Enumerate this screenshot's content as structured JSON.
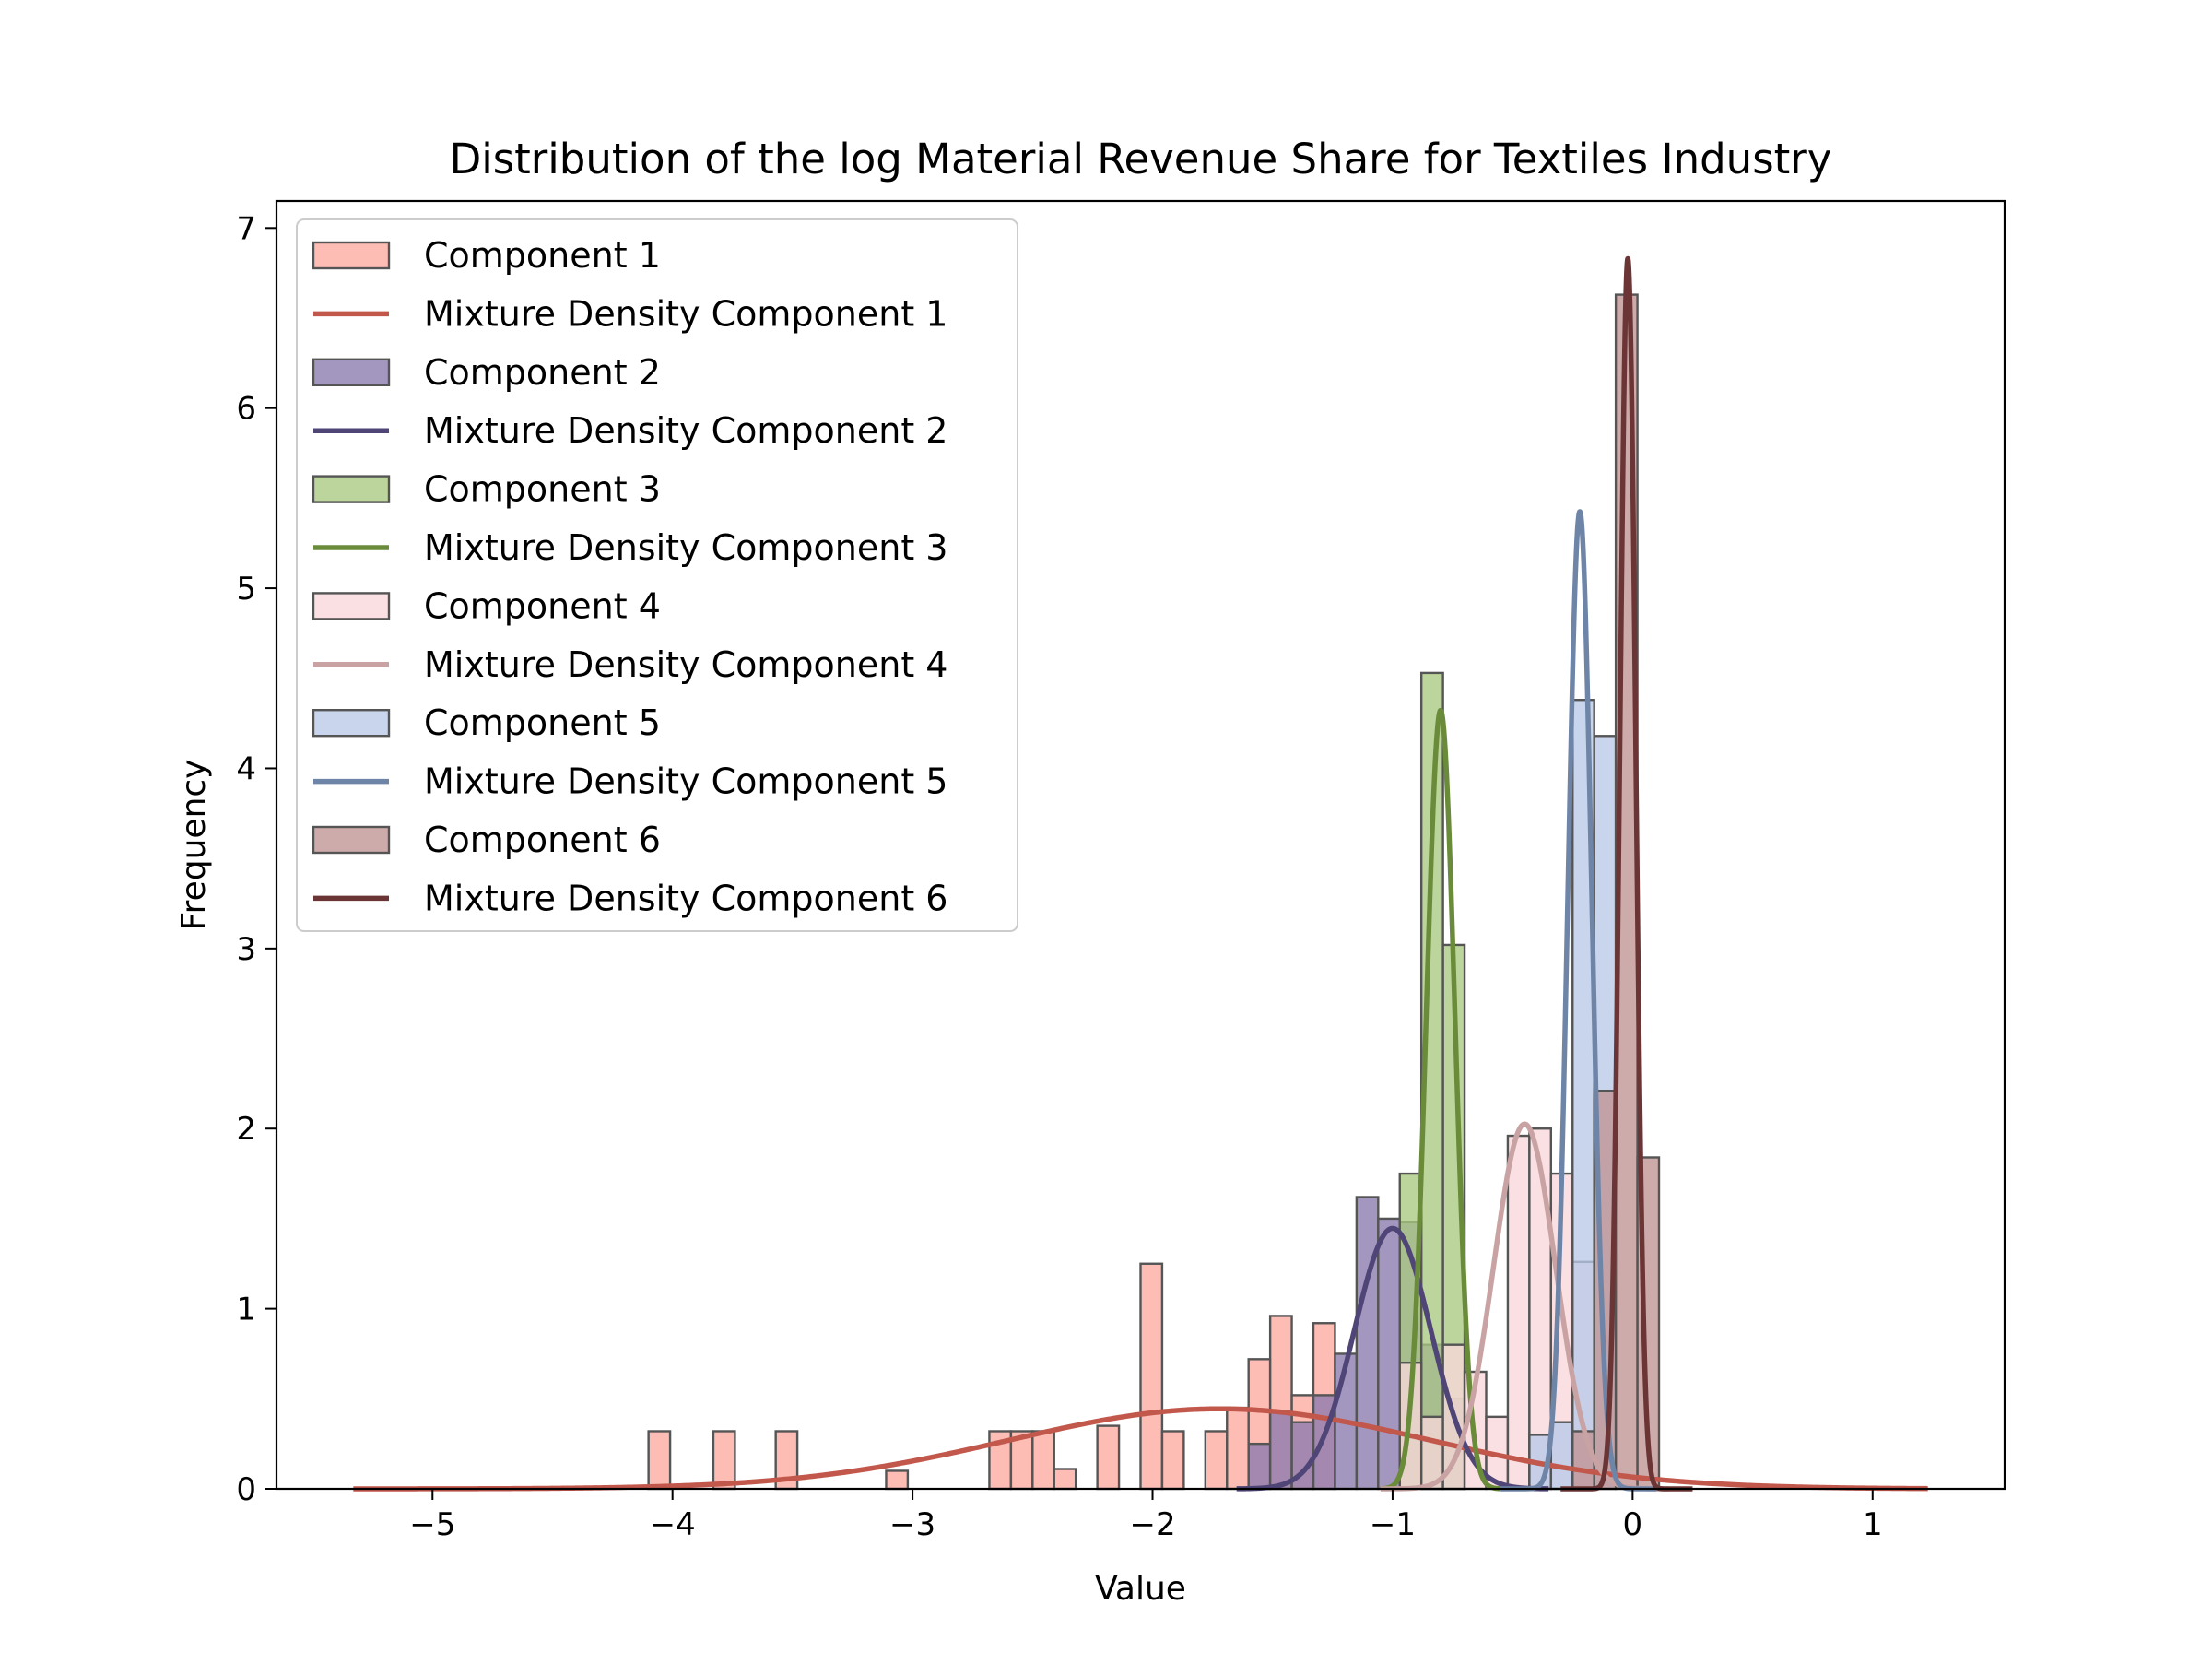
{
  "chart_data": {
    "type": "histogram",
    "title": "Distribution of the log Material Revenue Share for Textiles Industry",
    "xlabel": "Value",
    "ylabel": "Frequency",
    "xlim": [
      -5.65,
      1.55
    ],
    "ylim": [
      0,
      7.15
    ],
    "x_ticks": [
      -5,
      -4,
      -3,
      -2,
      -1,
      0,
      1
    ],
    "x_tick_labels": [
      "−5",
      "−4",
      "−3",
      "−2",
      "−1",
      "0",
      "1"
    ],
    "y_ticks": [
      0,
      1,
      2,
      3,
      4,
      5,
      6,
      7
    ],
    "y_tick_labels": [
      "0",
      "1",
      "2",
      "3",
      "4",
      "5",
      "6",
      "7"
    ],
    "legend_position": "upper-left",
    "series": [
      {
        "name": "Component 1",
        "kind": "histogram",
        "fill": "#fca99f",
        "edge": "#555555",
        "bins": [
          {
            "x0": -4.1,
            "x1": -4.01,
            "y": 0.32
          },
          {
            "x0": -3.83,
            "x1": -3.74,
            "y": 0.32
          },
          {
            "x0": -3.57,
            "x1": -3.48,
            "y": 0.32
          },
          {
            "x0": -3.11,
            "x1": -3.02,
            "y": 0.1
          },
          {
            "x0": -2.68,
            "x1": -2.59,
            "y": 0.32
          },
          {
            "x0": -2.59,
            "x1": -2.5,
            "y": 0.32
          },
          {
            "x0": -2.5,
            "x1": -2.41,
            "y": 0.32
          },
          {
            "x0": -2.41,
            "x1": -2.32,
            "y": 0.11
          },
          {
            "x0": -2.23,
            "x1": -2.14,
            "y": 0.35
          },
          {
            "x0": -2.05,
            "x1": -1.96,
            "y": 1.25
          },
          {
            "x0": -1.96,
            "x1": -1.87,
            "y": 0.32
          },
          {
            "x0": -1.78,
            "x1": -1.69,
            "y": 0.32
          },
          {
            "x0": -1.69,
            "x1": -1.6,
            "y": 0.45
          },
          {
            "x0": -1.6,
            "x1": -1.51,
            "y": 0.72
          },
          {
            "x0": -1.51,
            "x1": -1.42,
            "y": 0.96
          },
          {
            "x0": -1.42,
            "x1": -1.33,
            "y": 0.52
          },
          {
            "x0": -1.33,
            "x1": -1.24,
            "y": 0.92
          }
        ]
      },
      {
        "name": "Mixture Density Component 1",
        "kind": "density",
        "color": "#c2574b",
        "mu": -1.72,
        "sigma": 0.88,
        "weight": 0.98,
        "range": [
          -5.33,
          1.23
        ]
      },
      {
        "name": "Component 2",
        "kind": "histogram",
        "fill": "#8a7aad",
        "edge": "#555555",
        "bins": [
          {
            "x0": -1.6,
            "x1": -1.51,
            "y": 0.25
          },
          {
            "x0": -1.51,
            "x1": -1.42,
            "y": 0.43
          },
          {
            "x0": -1.42,
            "x1": -1.33,
            "y": 0.37
          },
          {
            "x0": -1.33,
            "x1": -1.24,
            "y": 0.52
          },
          {
            "x0": -1.24,
            "x1": -1.15,
            "y": 0.75
          },
          {
            "x0": -1.15,
            "x1": -1.06,
            "y": 1.62
          },
          {
            "x0": -1.06,
            "x1": -0.97,
            "y": 1.5
          },
          {
            "x0": -0.97,
            "x1": -0.88,
            "y": 1.48
          },
          {
            "x0": -0.88,
            "x1": -0.79,
            "y": 0.8
          },
          {
            "x0": -0.79,
            "x1": -0.7,
            "y": 0.5
          }
        ]
      },
      {
        "name": "Mixture Density Component 2",
        "kind": "density",
        "color": "#4f4577",
        "mu": -1.0,
        "sigma": 0.16,
        "weight": 0.58,
        "range": [
          -1.65,
          -0.35
        ]
      },
      {
        "name": "Component 3",
        "kind": "histogram",
        "fill": "#a9c980",
        "edge": "#555555",
        "bins": [
          {
            "x0": -0.97,
            "x1": -0.88,
            "y": 1.75
          },
          {
            "x0": -0.88,
            "x1": -0.79,
            "y": 4.53
          },
          {
            "x0": -0.79,
            "x1": -0.7,
            "y": 3.02
          }
        ]
      },
      {
        "name": "Mixture Density Component 3",
        "kind": "density",
        "color": "#6a8c3a",
        "mu": -0.8,
        "sigma": 0.06,
        "weight": 0.65,
        "range": [
          -1.05,
          -0.55
        ]
      },
      {
        "name": "Component 4",
        "kind": "histogram",
        "fill": "#f8d7da",
        "edge": "#555555",
        "bins": [
          {
            "x0": -0.97,
            "x1": -0.88,
            "y": 0.7
          },
          {
            "x0": -0.88,
            "x1": -0.79,
            "y": 0.4
          },
          {
            "x0": -0.79,
            "x1": -0.7,
            "y": 0.8
          },
          {
            "x0": -0.7,
            "x1": -0.61,
            "y": 0.65
          },
          {
            "x0": -0.61,
            "x1": -0.52,
            "y": 0.4
          },
          {
            "x0": -0.52,
            "x1": -0.43,
            "y": 1.96
          },
          {
            "x0": -0.43,
            "x1": -0.34,
            "y": 2.0
          },
          {
            "x0": -0.34,
            "x1": -0.25,
            "y": 1.75
          },
          {
            "x0": -0.25,
            "x1": -0.16,
            "y": 1.26
          }
        ]
      },
      {
        "name": "Mixture Density Component 4",
        "kind": "density",
        "color": "#c9a3a3",
        "mu": -0.45,
        "sigma": 0.13,
        "weight": 0.66,
        "range": [
          -1.05,
          0.15
        ]
      },
      {
        "name": "Component 5",
        "kind": "histogram",
        "fill": "#b9c9e8",
        "edge": "#555555",
        "bins": [
          {
            "x0": -0.43,
            "x1": -0.34,
            "y": 0.3
          },
          {
            "x0": -0.34,
            "x1": -0.25,
            "y": 0.37
          },
          {
            "x0": -0.25,
            "x1": -0.16,
            "y": 4.38
          },
          {
            "x0": -0.16,
            "x1": -0.07,
            "y": 4.18
          }
        ]
      },
      {
        "name": "Mixture Density Component 5",
        "kind": "density",
        "color": "#6e85a8",
        "mu": -0.22,
        "sigma": 0.05,
        "weight": 0.68,
        "range": [
          -0.55,
          0.1
        ]
      },
      {
        "name": "Component 6",
        "kind": "histogram",
        "fill": "#c09393",
        "edge": "#555555",
        "bins": [
          {
            "x0": -0.25,
            "x1": -0.16,
            "y": 0.32
          },
          {
            "x0": -0.16,
            "x1": -0.07,
            "y": 2.21
          },
          {
            "x0": -0.07,
            "x1": 0.02,
            "y": 6.63
          },
          {
            "x0": 0.02,
            "x1": 0.11,
            "y": 1.84
          }
        ]
      },
      {
        "name": "Mixture Density Component 6",
        "kind": "density",
        "color": "#6b3535",
        "mu": -0.02,
        "sigma": 0.033,
        "weight": 0.565,
        "range": [
          -0.3,
          0.25
        ]
      }
    ]
  }
}
